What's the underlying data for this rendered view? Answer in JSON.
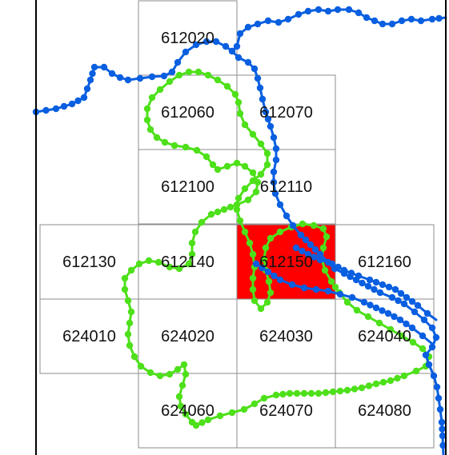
{
  "map": {
    "highlight_color": "#ff0000",
    "grid_cells": [
      {
        "id": "612020",
        "highlighted": false
      },
      {
        "id": "612060",
        "highlighted": false
      },
      {
        "id": "612070",
        "highlighted": false
      },
      {
        "id": "612100",
        "highlighted": false
      },
      {
        "id": "612110",
        "highlighted": false
      },
      {
        "id": "612130",
        "highlighted": false
      },
      {
        "id": "612140",
        "highlighted": false
      },
      {
        "id": "612150",
        "highlighted": true
      },
      {
        "id": "612160",
        "highlighted": false
      },
      {
        "id": "624010",
        "highlighted": false
      },
      {
        "id": "624020",
        "highlighted": false
      },
      {
        "id": "624030",
        "highlighted": false
      },
      {
        "id": "624040",
        "highlighted": false
      },
      {
        "id": "624060",
        "highlighted": false
      },
      {
        "id": "624070",
        "highlighted": false
      },
      {
        "id": "624080",
        "highlighted": false
      }
    ],
    "tracks": [
      {
        "color": "#0a5fe0"
      },
      {
        "color": "#4ee01a"
      }
    ]
  }
}
